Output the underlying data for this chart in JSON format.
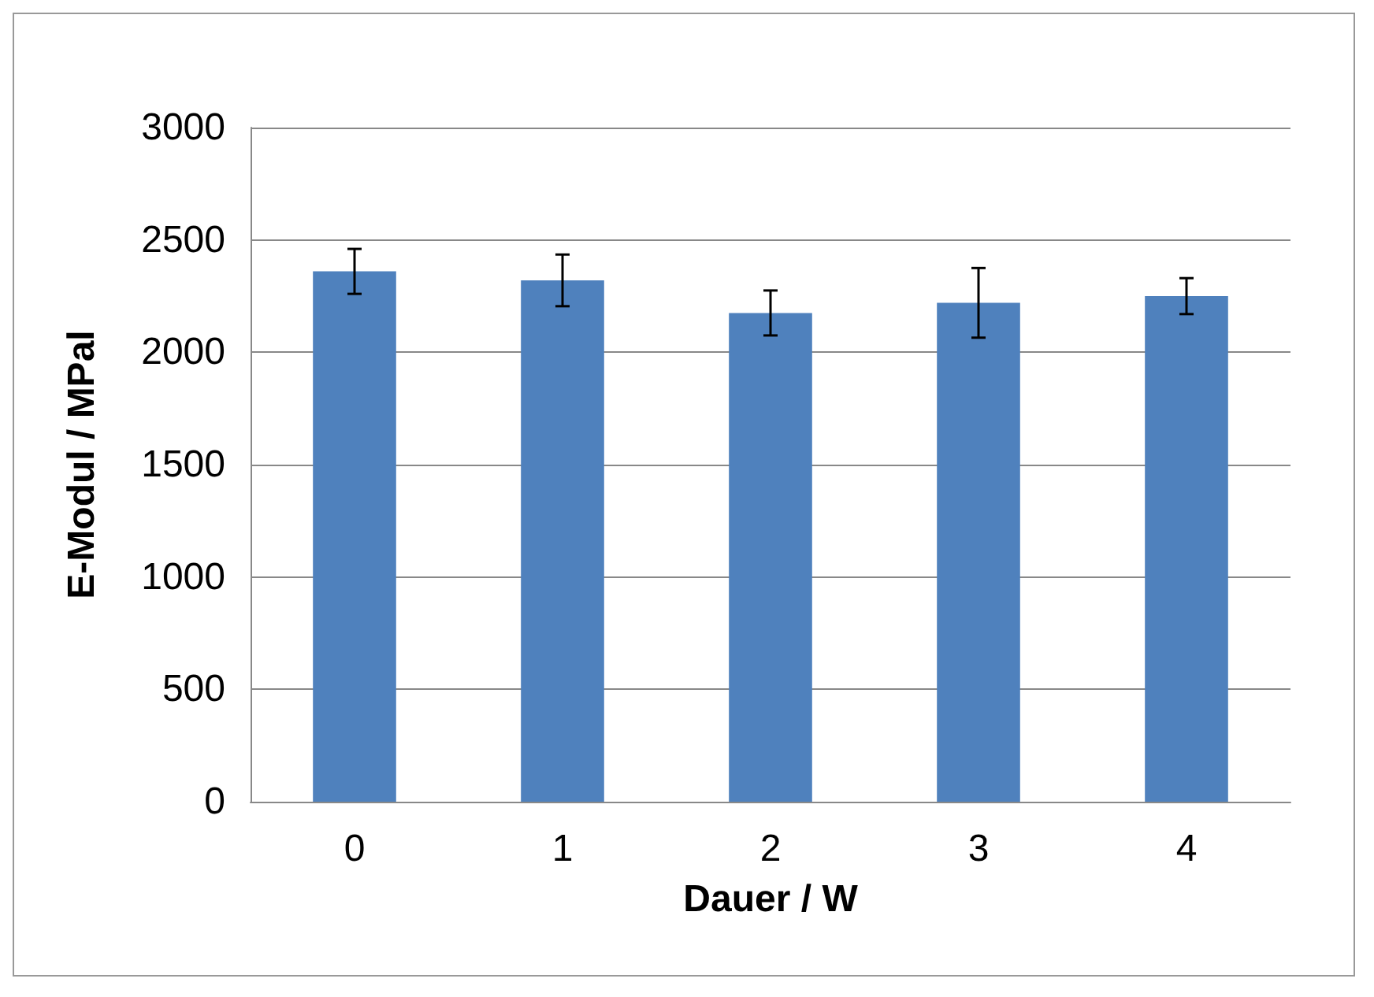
{
  "chart_data": {
    "type": "bar",
    "xlabel": "Dauer / W",
    "ylabel": "E-Modul / MPal",
    "categories": [
      "0",
      "1",
      "2",
      "3",
      "4"
    ],
    "values": [
      2360,
      2320,
      2175,
      2220,
      2250
    ],
    "errors": [
      100,
      115,
      100,
      155,
      80
    ],
    "color": "#4f81bd",
    "ylim": [
      0,
      3000
    ],
    "yticks": [
      0,
      500,
      1000,
      1500,
      2000,
      2500,
      3000
    ],
    "grid": "y"
  }
}
